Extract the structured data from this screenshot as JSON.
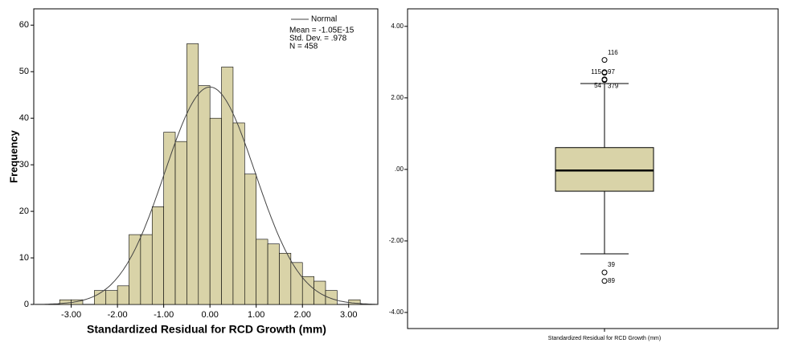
{
  "chart_data": [
    {
      "type": "histogram",
      "x_label": "Standardized Residual for RCD Growth (mm)",
      "y_label": "Frequency",
      "bins": [
        -3.25,
        -3.0,
        -2.75,
        -2.5,
        -2.25,
        -2.0,
        -1.75,
        -1.5,
        -1.25,
        -1.0,
        -0.75,
        -0.5,
        -0.25,
        0.0,
        0.25,
        0.5,
        0.75,
        1.0,
        1.25,
        1.5,
        1.75,
        2.0,
        2.25,
        2.5,
        2.75,
        3.0,
        3.25
      ],
      "values": [
        1,
        1,
        0,
        3,
        3,
        4,
        15,
        15,
        21,
        37,
        35,
        56,
        47,
        40,
        51,
        39,
        28,
        14,
        13,
        11,
        9,
        6,
        5,
        3,
        0,
        1
      ],
      "color": "#d9d3a8",
      "xlim": [
        -3.81,
        3.63
      ],
      "xticks": [
        {
          "value": -3,
          "label": "-3.00"
        },
        {
          "value": -2,
          "label": "-2.00"
        },
        {
          "value": -1,
          "label": "-1.00"
        },
        {
          "value": 0,
          "label": "0.00"
        },
        {
          "value": 1,
          "label": "1.00"
        },
        {
          "value": 2,
          "label": "2.00"
        },
        {
          "value": 3,
          "label": "3.00"
        }
      ],
      "ylim": [
        0,
        63.5
      ],
      "yticks": [
        0,
        10,
        20,
        30,
        40,
        50,
        60
      ],
      "normal": {
        "name": "Normal",
        "stats": [
          {
            "value": -1.05e-15,
            "label": "Mean = -1.05E-15"
          },
          {
            "value": 0.978,
            "label": "Std. Dev. = .978"
          },
          {
            "value": 458,
            "label": "N = 458"
          }
        ]
      }
    },
    {
      "type": "boxplot",
      "categories": [
        "Standardized Residual for RCD Growth (mm)"
      ],
      "color": "#d9d3a8",
      "q1": -0.61,
      "median": -0.03,
      "q3": 0.61,
      "whisker_low": -2.36,
      "whisker_high": 2.4,
      "outliers": [
        {
          "label": "116",
          "value": 3.06
        },
        {
          "label": "115",
          "value": 2.72
        },
        {
          "label": "97",
          "value": 2.7
        },
        {
          "label": "54",
          "value": 2.52
        },
        {
          "label": "379",
          "value": 2.5
        },
        {
          "label": "39",
          "value": -2.88
        },
        {
          "label": "89",
          "value": -3.12
        }
      ],
      "ylim": [
        -4.45,
        4.49
      ],
      "yticks": [
        {
          "value": -4,
          "label": "-4.00"
        },
        {
          "value": -2,
          "label": "-2.00"
        },
        {
          "value": 0,
          "label": ".00"
        },
        {
          "value": 2,
          "label": "2.00"
        },
        {
          "value": 4,
          "label": "4.00"
        }
      ]
    }
  ]
}
